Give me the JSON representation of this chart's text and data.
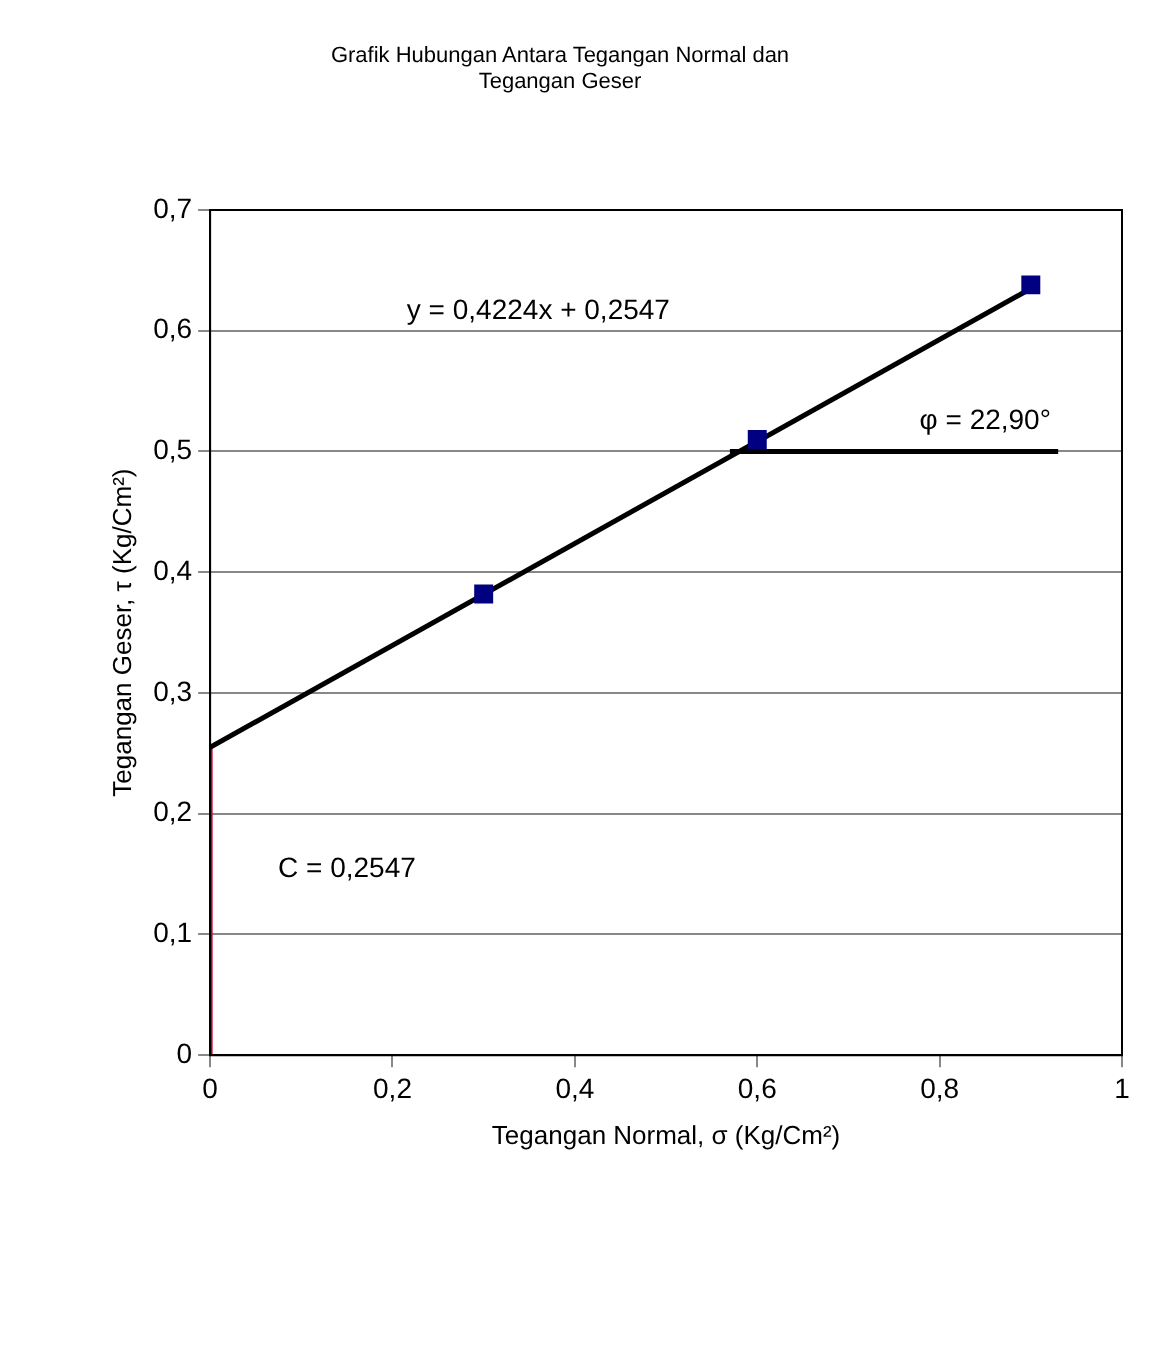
{
  "chart_data": {
    "type": "scatter",
    "title": "Grafik Hubungan Antara Tegangan Normal dan Tegangan Geser",
    "xlabel": "Tegangan Normal, σ (Kg/Cm²)",
    "ylabel": "Tegangan Geser, τ (Kg/Cm²)",
    "series": [
      {
        "color": "#000080",
        "marker": "square",
        "x": [
          0.3,
          0.6,
          0.9
        ],
        "values": [
          0.382,
          0.51,
          0.638
        ]
      },
      {
        "type": "line",
        "color": "#000000",
        "marker": "none",
        "x": [
          0,
          0.9
        ],
        "values": [
          0.255,
          0.635
        ]
      },
      {
        "type": "line",
        "color": "#000000",
        "marker": "none",
        "x": [
          0.57,
          0.93
        ],
        "values": [
          0.5,
          0.5
        ]
      },
      {
        "type": "line",
        "color": "#cc0033",
        "marker": "none",
        "x": [
          0,
          0
        ],
        "values": [
          0,
          0.255
        ]
      }
    ],
    "xlim": [
      0,
      1
    ],
    "xticks": [
      {
        "value": 0,
        "label": "0"
      },
      {
        "value": 0.2,
        "label": "0,2"
      },
      {
        "value": 0.4,
        "label": "0,4"
      },
      {
        "value": 0.6,
        "label": "0,6"
      },
      {
        "value": 0.8,
        "label": "0,8"
      },
      {
        "value": 1,
        "label": "1"
      }
    ],
    "ylim": [
      0,
      0.7
    ],
    "yticks": [
      {
        "value": 0,
        "label": "0"
      },
      {
        "value": 0.1,
        "label": "0,1"
      },
      {
        "value": 0.2,
        "label": "0,2"
      },
      {
        "value": 0.3,
        "label": "0,3"
      },
      {
        "value": 0.4,
        "label": "0,4"
      },
      {
        "value": 0.5,
        "label": "0,5"
      },
      {
        "value": 0.6,
        "label": "0,6"
      },
      {
        "value": 0.7,
        "label": "0,7"
      }
    ],
    "grid": "y",
    "legend": false,
    "annotations": [
      "y = 0,4224x + 0,2547",
      "φ = 22,90°",
      "C = 0,2547"
    ]
  }
}
